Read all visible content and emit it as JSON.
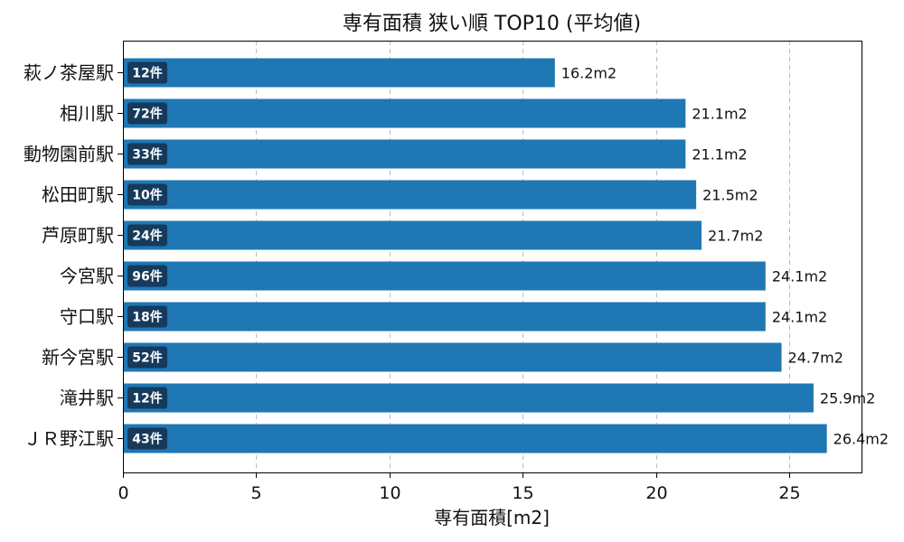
{
  "chart_data": {
    "type": "bar",
    "orientation": "horizontal",
    "title": "専有面積 狭い順 TOP10 (平均値)",
    "xlabel": "専有面積[m2]",
    "ylabel": "",
    "xlim": [
      0,
      27.7
    ],
    "xticks": [
      0,
      5,
      10,
      15,
      20,
      25
    ],
    "grid": "x-dashed",
    "bar_color": "#1f77b4",
    "badge_color": "#163a5c",
    "value_suffix": "m2",
    "categories": [
      "萩ノ茶屋駅",
      "相川駅",
      "動物園前駅",
      "松田町駅",
      "芦原町駅",
      "今宮駅",
      "守口駅",
      "新今宮駅",
      "滝井駅",
      "ＪＲ野江駅"
    ],
    "values": [
      16.2,
      21.1,
      21.1,
      21.5,
      21.7,
      24.1,
      24.1,
      24.7,
      25.9,
      26.4
    ],
    "value_labels": [
      "16.2m2",
      "21.1m2",
      "21.1m2",
      "21.5m2",
      "21.7m2",
      "24.1m2",
      "24.1m2",
      "24.7m2",
      "25.9m2",
      "26.4m2"
    ],
    "counts": [
      "12件",
      "72件",
      "33件",
      "10件",
      "24件",
      "96件",
      "18件",
      "52件",
      "12件",
      "43件"
    ]
  }
}
